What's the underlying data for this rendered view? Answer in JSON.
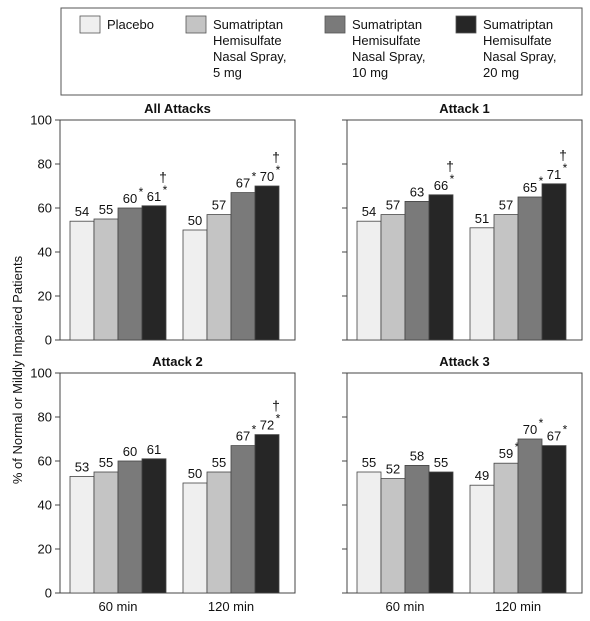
{
  "legend": {
    "items": [
      {
        "label_lines": [
          "Placebo"
        ],
        "color": "#efefef"
      },
      {
        "label_lines": [
          "Sumatriptan",
          "Hemisulfate",
          "Nasal Spray,",
          "5 mg"
        ],
        "color": "#c4c4c4"
      },
      {
        "label_lines": [
          "Sumatriptan",
          "Hemisulfate",
          "Nasal Spray,",
          "10 mg"
        ],
        "color": "#7a7a7a"
      },
      {
        "label_lines": [
          "Sumatriptan",
          "Hemisulfate",
          "Nasal Spray,",
          "20 mg"
        ],
        "color": "#262626"
      }
    ]
  },
  "chart_data": {
    "type": "bar",
    "ylabel": "% of Normal or Mildly Impaired Patients",
    "ylim": [
      0,
      100
    ],
    "yticks": [
      0,
      20,
      40,
      60,
      80,
      100
    ],
    "categories": [
      "60 min",
      "120 min"
    ],
    "series_names": [
      "Placebo",
      "Sumatriptan Hemisulfate Nasal Spray, 5 mg",
      "Sumatriptan Hemisulfate Nasal Spray, 10 mg",
      "Sumatriptan Hemisulfate Nasal Spray, 20 mg"
    ],
    "symbols": {
      "asterisk": "*",
      "dagger": "†"
    },
    "panels": [
      {
        "title": "All Attacks",
        "groups": [
          {
            "category": "60 min",
            "values": [
              54,
              55,
              60,
              61
            ],
            "asterisk": [
              false,
              false,
              true,
              true
            ],
            "dagger": [
              false,
              false,
              false,
              true
            ]
          },
          {
            "category": "120 min",
            "values": [
              50,
              57,
              67,
              70
            ],
            "asterisk": [
              false,
              false,
              true,
              true
            ],
            "dagger": [
              false,
              false,
              false,
              true
            ]
          }
        ]
      },
      {
        "title": "Attack 1",
        "groups": [
          {
            "category": "60 min",
            "values": [
              54,
              57,
              63,
              66
            ],
            "asterisk": [
              false,
              false,
              false,
              true
            ],
            "dagger": [
              false,
              false,
              false,
              true
            ]
          },
          {
            "category": "120 min",
            "values": [
              51,
              57,
              65,
              71
            ],
            "asterisk": [
              false,
              false,
              true,
              true
            ],
            "dagger": [
              false,
              false,
              false,
              true
            ]
          }
        ]
      },
      {
        "title": "Attack 2",
        "groups": [
          {
            "category": "60 min",
            "values": [
              53,
              55,
              60,
              61
            ],
            "asterisk": [
              false,
              false,
              false,
              false
            ],
            "dagger": [
              false,
              false,
              false,
              false
            ]
          },
          {
            "category": "120 min",
            "values": [
              50,
              55,
              67,
              72
            ],
            "asterisk": [
              false,
              false,
              true,
              true
            ],
            "dagger": [
              false,
              false,
              false,
              true
            ]
          }
        ]
      },
      {
        "title": "Attack 3",
        "groups": [
          {
            "category": "60 min",
            "values": [
              55,
              52,
              58,
              55
            ],
            "asterisk": [
              false,
              false,
              false,
              false
            ],
            "dagger": [
              false,
              false,
              false,
              false
            ]
          },
          {
            "category": "120 min",
            "values": [
              49,
              59,
              70,
              67
            ],
            "asterisk": [
              false,
              true,
              true,
              true
            ],
            "dagger": [
              false,
              false,
              false,
              false
            ]
          }
        ]
      }
    ]
  }
}
